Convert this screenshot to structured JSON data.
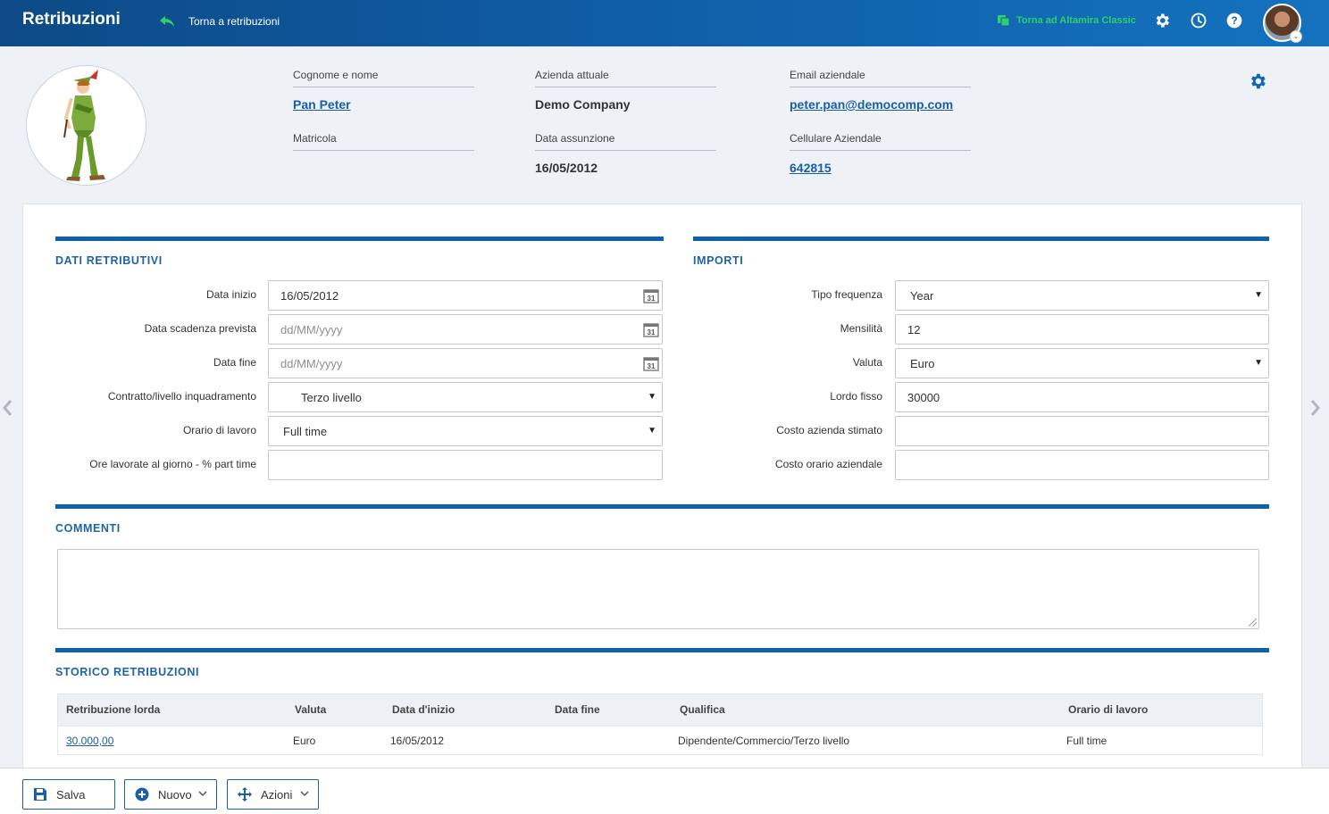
{
  "header": {
    "app_title": "Retribuzioni",
    "back_label": "Torna a retribuzioni",
    "classic_label": "Torna ad Altamira Classic"
  },
  "profile": {
    "name_label": "Cognome e nome",
    "name_value": "Pan Peter",
    "matricola_label": "Matricola",
    "matricola_value": "",
    "company_label": "Azienda attuale",
    "company_value": "Demo Company",
    "hire_label": "Data assunzione",
    "hire_value": "16/05/2012",
    "email_label": "Email aziendale",
    "email_value": "peter.pan@democomp.com",
    "phone_label": "Cellulare Aziendale",
    "phone_value": "642815"
  },
  "dati_retributivi": {
    "title": "DATI RETRIBUTIVI",
    "data_inizio_label": "Data inizio",
    "data_inizio_value": "16/05/2012",
    "data_scadenza_label": "Data scadenza prevista",
    "data_scadenza_placeholder": "dd/MM/yyyy",
    "data_fine_label": "Data fine",
    "data_fine_placeholder": "dd/MM/yyyy",
    "contratto_label": "Contratto/livello inquadramento",
    "contratto_value": "Terzo livello",
    "orario_label": "Orario di lavoro",
    "orario_value": "Full time",
    "ore_label": "Ore lavorate al giorno - % part time",
    "ore_value": "",
    "calendar_icon_text": "31"
  },
  "importi": {
    "title": "IMPORTI",
    "tipo_label": "Tipo frequenza",
    "tipo_value": "Year",
    "mensilita_label": "Mensilità",
    "mensilita_value": "12",
    "valuta_label": "Valuta",
    "valuta_value": "Euro",
    "lordo_label": "Lordo fisso",
    "lordo_value": "30000",
    "costo_label": "Costo azienda stimato",
    "costo_value": "",
    "costo_orario_label": "Costo orario aziendale",
    "costo_orario_value": ""
  },
  "commenti": {
    "title": "COMMENTI",
    "value": ""
  },
  "storico": {
    "title": "STORICO RETRIBUZIONI",
    "columns": [
      "Retribuzione lorda",
      "Valuta",
      "Data d'inizio",
      "Data fine",
      "Qualifica",
      "Orario di lavoro"
    ],
    "rows": [
      [
        "30.000,00",
        "Euro",
        "16/05/2012",
        "",
        "Dipendente/Commercio/Terzo livello",
        "Full time"
      ]
    ]
  },
  "footer": {
    "save_label": "Salva",
    "new_label": "Nuovo",
    "actions_label": "Azioni"
  },
  "colors": {
    "topbar": "#0f5fa8",
    "accent": "#0e62ad",
    "classic_link": "#2fcf6b",
    "link": "#1a5ea8"
  },
  "icons": [
    "back-arrow-icon",
    "classic-windows-icon",
    "settings-gear-icon",
    "history-clock-icon",
    "help-icon",
    "calendar-icon",
    "save-icon",
    "add-circle-icon",
    "move-arrows-icon",
    "chevron-down-icon",
    "chevron-left-icon",
    "chevron-right-icon"
  ]
}
